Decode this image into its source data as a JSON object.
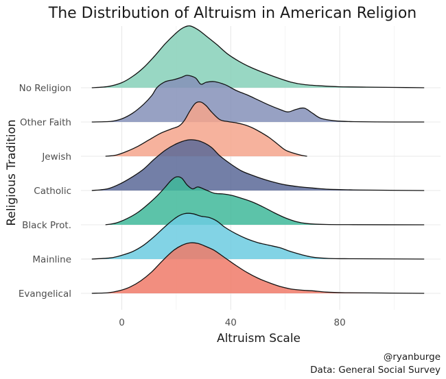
{
  "chart_data": {
    "type": "ridgeline",
    "title": "The Distribution of Altruism in American Religion",
    "xlabel": "Altruism Scale",
    "ylabel": "Religious Tradition",
    "xlim": [
      -12,
      112
    ],
    "x_ticks": [
      0,
      40,
      80
    ],
    "x_tick_labels": [
      "0",
      "40",
      "80"
    ],
    "grid": true,
    "caption": [
      "@ryanburge",
      "Data: General Social Survey"
    ],
    "series": [
      {
        "name": "No Religion",
        "color": "#86d0b8",
        "points": [
          [
            -11,
            0
          ],
          [
            -5,
            0.02
          ],
          [
            0,
            0.08
          ],
          [
            4,
            0.18
          ],
          [
            8,
            0.32
          ],
          [
            12,
            0.5
          ],
          [
            16,
            0.7
          ],
          [
            20,
            0.87
          ],
          [
            22.5,
            0.95
          ],
          [
            25,
            0.98
          ],
          [
            28,
            0.92
          ],
          [
            31,
            0.82
          ],
          [
            35,
            0.68
          ],
          [
            39,
            0.53
          ],
          [
            43,
            0.42
          ],
          [
            47,
            0.33
          ],
          [
            52,
            0.24
          ],
          [
            57,
            0.16
          ],
          [
            62,
            0.09
          ],
          [
            67,
            0.05
          ],
          [
            73,
            0.03
          ],
          [
            80,
            0.015
          ],
          [
            90,
            0.01
          ],
          [
            100,
            0.005
          ],
          [
            111,
            0
          ]
        ]
      },
      {
        "name": "Other Faith",
        "color": "#8590b8",
        "points": [
          [
            -11,
            0
          ],
          [
            -4,
            0.01
          ],
          [
            0,
            0.05
          ],
          [
            4,
            0.14
          ],
          [
            8,
            0.28
          ],
          [
            11,
            0.42
          ],
          [
            13,
            0.55
          ],
          [
            16,
            0.64
          ],
          [
            19,
            0.67
          ],
          [
            22,
            0.71
          ],
          [
            24,
            0.74
          ],
          [
            27,
            0.7
          ],
          [
            29,
            0.6
          ],
          [
            31,
            0.63
          ],
          [
            34,
            0.64
          ],
          [
            38,
            0.59
          ],
          [
            42,
            0.5
          ],
          [
            46,
            0.43
          ],
          [
            50,
            0.35
          ],
          [
            54,
            0.27
          ],
          [
            58,
            0.2
          ],
          [
            61,
            0.16
          ],
          [
            64,
            0.2
          ],
          [
            67,
            0.22
          ],
          [
            70,
            0.14
          ],
          [
            73,
            0.06
          ],
          [
            78,
            0.02
          ],
          [
            85,
            0.005
          ],
          [
            100,
            0
          ],
          [
            111,
            0
          ]
        ]
      },
      {
        "name": "Jewish",
        "color": "#f5a58c",
        "points": [
          [
            -6,
            0
          ],
          [
            -2,
            0.02
          ],
          [
            2,
            0.08
          ],
          [
            6,
            0.16
          ],
          [
            10,
            0.26
          ],
          [
            14,
            0.36
          ],
          [
            18,
            0.43
          ],
          [
            21,
            0.48
          ],
          [
            23,
            0.57
          ],
          [
            25,
            0.72
          ],
          [
            27,
            0.84
          ],
          [
            29,
            0.86
          ],
          [
            31,
            0.8
          ],
          [
            33,
            0.7
          ],
          [
            36,
            0.58
          ],
          [
            39,
            0.55
          ],
          [
            42,
            0.53
          ],
          [
            45,
            0.5
          ],
          [
            48,
            0.45
          ],
          [
            51,
            0.38
          ],
          [
            54,
            0.3
          ],
          [
            57,
            0.2
          ],
          [
            60,
            0.1
          ],
          [
            63,
            0.05
          ],
          [
            66,
            0.015
          ],
          [
            68,
            0
          ]
        ]
      },
      {
        "name": "Catholic",
        "color": "#5a6998",
        "points": [
          [
            -11,
            0
          ],
          [
            -5,
            0.03
          ],
          [
            0,
            0.12
          ],
          [
            4,
            0.22
          ],
          [
            8,
            0.34
          ],
          [
            12,
            0.5
          ],
          [
            16,
            0.64
          ],
          [
            20,
            0.74
          ],
          [
            24,
            0.8
          ],
          [
            27,
            0.8
          ],
          [
            30,
            0.76
          ],
          [
            33,
            0.68
          ],
          [
            36,
            0.55
          ],
          [
            40,
            0.42
          ],
          [
            44,
            0.31
          ],
          [
            48,
            0.24
          ],
          [
            52,
            0.18
          ],
          [
            56,
            0.13
          ],
          [
            60,
            0.09
          ],
          [
            65,
            0.06
          ],
          [
            70,
            0.04
          ],
          [
            76,
            0.02
          ],
          [
            85,
            0.01
          ],
          [
            95,
            0.005
          ],
          [
            111,
            0
          ]
        ]
      },
      {
        "name": "Black Prot.",
        "color": "#3fb89a",
        "points": [
          [
            -6,
            0
          ],
          [
            -2,
            0.03
          ],
          [
            2,
            0.1
          ],
          [
            6,
            0.2
          ],
          [
            10,
            0.34
          ],
          [
            13,
            0.46
          ],
          [
            16,
            0.6
          ],
          [
            18,
            0.7
          ],
          [
            20,
            0.76
          ],
          [
            22,
            0.74
          ],
          [
            24,
            0.63
          ],
          [
            26,
            0.57
          ],
          [
            28,
            0.6
          ],
          [
            31,
            0.55
          ],
          [
            34,
            0.5
          ],
          [
            37,
            0.49
          ],
          [
            40,
            0.47
          ],
          [
            44,
            0.42
          ],
          [
            48,
            0.36
          ],
          [
            52,
            0.28
          ],
          [
            56,
            0.19
          ],
          [
            60,
            0.11
          ],
          [
            64,
            0.05
          ],
          [
            68,
            0.02
          ],
          [
            75,
            0.005
          ],
          [
            85,
            0.002
          ],
          [
            111,
            0
          ]
        ]
      },
      {
        "name": "Mainline",
        "color": "#6ccbe0",
        "points": [
          [
            -11,
            0
          ],
          [
            -4,
            0.02
          ],
          [
            0,
            0.06
          ],
          [
            4,
            0.12
          ],
          [
            8,
            0.22
          ],
          [
            12,
            0.36
          ],
          [
            16,
            0.52
          ],
          [
            20,
            0.66
          ],
          [
            23,
            0.72
          ],
          [
            26,
            0.72
          ],
          [
            29,
            0.68
          ],
          [
            32,
            0.66
          ],
          [
            35,
            0.6
          ],
          [
            38,
            0.5
          ],
          [
            42,
            0.4
          ],
          [
            46,
            0.32
          ],
          [
            50,
            0.26
          ],
          [
            54,
            0.22
          ],
          [
            58,
            0.18
          ],
          [
            62,
            0.12
          ],
          [
            66,
            0.07
          ],
          [
            70,
            0.03
          ],
          [
            76,
            0.01
          ],
          [
            85,
            0.005
          ],
          [
            111,
            0
          ]
        ]
      },
      {
        "name": "Evangelical",
        "color": "#f07a68",
        "points": [
          [
            -11,
            0
          ],
          [
            -5,
            0.01
          ],
          [
            -1,
            0.04
          ],
          [
            3,
            0.1
          ],
          [
            7,
            0.2
          ],
          [
            11,
            0.34
          ],
          [
            15,
            0.52
          ],
          [
            19,
            0.68
          ],
          [
            22,
            0.76
          ],
          [
            25,
            0.8
          ],
          [
            28,
            0.79
          ],
          [
            31,
            0.74
          ],
          [
            34,
            0.68
          ],
          [
            38,
            0.56
          ],
          [
            42,
            0.44
          ],
          [
            46,
            0.33
          ],
          [
            50,
            0.24
          ],
          [
            54,
            0.17
          ],
          [
            58,
            0.11
          ],
          [
            62,
            0.07
          ],
          [
            66,
            0.05
          ],
          [
            70,
            0.04
          ],
          [
            75,
            0.02
          ],
          [
            82,
            0.01
          ],
          [
            95,
            0.005
          ],
          [
            111,
            0
          ]
        ]
      }
    ]
  }
}
